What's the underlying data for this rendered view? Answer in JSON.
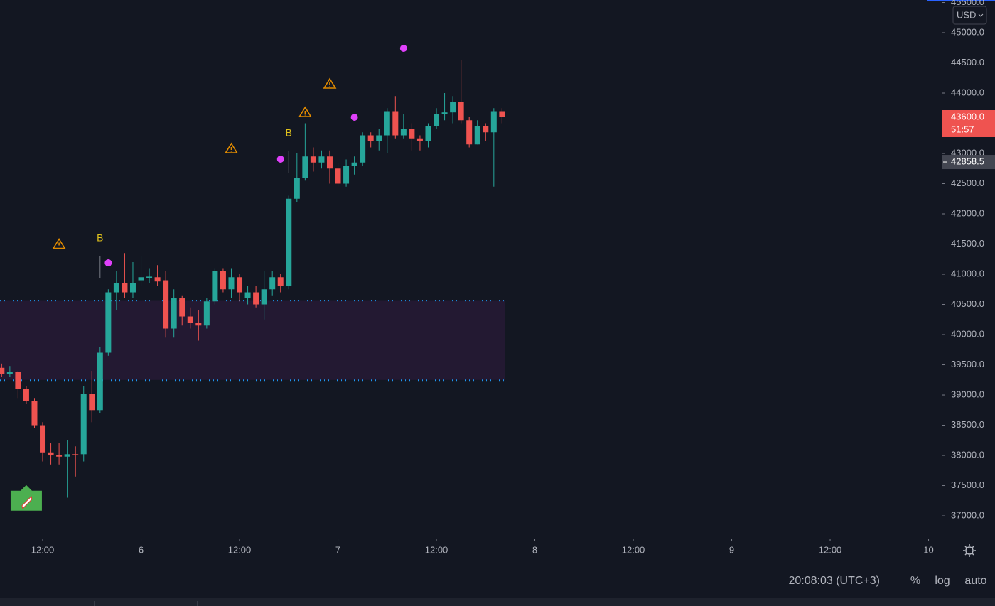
{
  "chart_data": {
    "type": "candlestick",
    "x": [
      7,
      8,
      9,
      10,
      11,
      12,
      13,
      14,
      15,
      16,
      17,
      18,
      19,
      20,
      21,
      22,
      23,
      24,
      25,
      26,
      27,
      28,
      29,
      30,
      31,
      32,
      33,
      34,
      35,
      36,
      37,
      38,
      39,
      40,
      41,
      42,
      43,
      44,
      45,
      46,
      47,
      48,
      49,
      50,
      51,
      52,
      53,
      54,
      55,
      56,
      57,
      58,
      59,
      60,
      61,
      62,
      63,
      64,
      65,
      66,
      67,
      68
    ],
    "open": [
      39450,
      39350,
      39380,
      39100,
      38900,
      38500,
      38050,
      38000,
      37980,
      38020,
      38020,
      39020,
      38750,
      39700,
      40700,
      40850,
      40700,
      40900,
      40930,
      40950,
      40900,
      40100,
      40600,
      40300,
      40200,
      40150,
      40550,
      41050,
      40750,
      40950,
      40600,
      40700,
      40500,
      40750,
      40950,
      40800,
      42250,
      42600,
      42950,
      42850,
      42950,
      42750,
      42500,
      42800,
      42850,
      43300,
      43200,
      43300,
      43700,
      43300,
      43400,
      43250,
      43200,
      43450,
      43650,
      43680,
      43850,
      43550,
      43150,
      43450,
      43350,
      43700
    ],
    "high": [
      39520,
      39480,
      39400,
      39150,
      38950,
      38550,
      38200,
      38200,
      38250,
      38150,
      39150,
      39400,
      39800,
      40750,
      41050,
      41350,
      41200,
      41300,
      41100,
      41150,
      41050,
      40750,
      40650,
      40450,
      40400,
      40600,
      41100,
      41100,
      41100,
      41000,
      40800,
      40800,
      41050,
      41050,
      41000,
      42300,
      43000,
      43500,
      43100,
      43050,
      43050,
      42850,
      42900,
      42950,
      43350,
      43350,
      43400,
      43750,
      43950,
      43650,
      43500,
      43300,
      43500,
      43750,
      44000,
      43950,
      44550,
      43600,
      43550,
      43500,
      43750,
      43750
    ],
    "low": [
      39300,
      39300,
      38950,
      38850,
      38450,
      37900,
      37850,
      37850,
      37300,
      37650,
      37900,
      38550,
      38700,
      39650,
      40400,
      40600,
      40600,
      40800,
      40850,
      40800,
      39950,
      39950,
      40150,
      40100,
      39900,
      40100,
      40500,
      40700,
      40600,
      40550,
      40500,
      40450,
      40250,
      40650,
      40700,
      40750,
      42200,
      42550,
      42700,
      42750,
      42500,
      42450,
      42450,
      42650,
      42800,
      43100,
      43050,
      43000,
      43250,
      43250,
      43050,
      43050,
      43100,
      43400,
      43550,
      43500,
      43500,
      43100,
      43150,
      43200,
      42450,
      43500
    ],
    "close": [
      39350,
      39380,
      39100,
      38900,
      38500,
      38050,
      38000,
      37980,
      38020,
      38010,
      39020,
      38750,
      39700,
      40700,
      40850,
      40700,
      40850,
      40950,
      40960,
      40880,
      40100,
      40600,
      40300,
      40200,
      40150,
      40550,
      41050,
      40750,
      40950,
      40700,
      40700,
      40500,
      40750,
      40950,
      40800,
      42250,
      42600,
      42950,
      42850,
      42950,
      42750,
      42500,
      42800,
      42850,
      43300,
      43200,
      43300,
      43700,
      43300,
      43400,
      43250,
      43200,
      43450,
      43650,
      43680,
      43850,
      43550,
      43150,
      43450,
      43350,
      43700,
      43600
    ],
    "up_color": "#26a69a",
    "down_color": "#ef5350",
    "xlim": [
      6.8,
      121.6
    ],
    "xticks": [
      {
        "value": 12,
        "label": "12:00"
      },
      {
        "value": 24,
        "label": "6"
      },
      {
        "value": 36,
        "label": "12:00"
      },
      {
        "value": 48,
        "label": "7"
      },
      {
        "value": 60,
        "label": "12:00"
      },
      {
        "value": 72,
        "label": "8"
      },
      {
        "value": 84,
        "label": "12:00"
      },
      {
        "value": 96,
        "label": "9"
      },
      {
        "value": 108,
        "label": "12:00"
      },
      {
        "value": 120,
        "label": "10"
      }
    ],
    "ylim": [
      36624,
      45541
    ],
    "yticks": [
      {
        "value": 37000,
        "label": "37000.0"
      },
      {
        "value": 37500,
        "label": "37500.0"
      },
      {
        "value": 38000,
        "label": "38000.0"
      },
      {
        "value": 38500,
        "label": "38500.0"
      },
      {
        "value": 39000,
        "label": "39000.0"
      },
      {
        "value": 39500,
        "label": "39500.0"
      },
      {
        "value": 40000,
        "label": "40000.0"
      },
      {
        "value": 40500,
        "label": "40500.0"
      },
      {
        "value": 41000,
        "label": "41000.0"
      },
      {
        "value": 41500,
        "label": "41500.0"
      },
      {
        "value": 42000,
        "label": "42000.0"
      },
      {
        "value": 42500,
        "label": "42500.0"
      },
      {
        "value": 43000,
        "label": "43000.0"
      },
      {
        "value": 43500,
        "label": "43500.0"
      },
      {
        "value": 44000,
        "label": "44000.0"
      },
      {
        "value": 44500,
        "label": "44500.0"
      },
      {
        "value": 45000,
        "label": "45000.0"
      },
      {
        "value": 45500,
        "label": "45500.0"
      }
    ],
    "zone": [
      39250,
      40570
    ],
    "zone_end": 68,
    "signals": [
      {
        "x": 19,
        "y": 41588,
        "label": "B"
      },
      {
        "x": 42,
        "y": 43329,
        "label": "B"
      }
    ],
    "warnings": [
      {
        "x": 14,
        "y": 41500
      },
      {
        "x": 35,
        "y": 43082
      },
      {
        "x": 44,
        "y": 43682
      },
      {
        "x": 47,
        "y": 44153
      }
    ],
    "dots": [
      {
        "x": 20,
        "y": 41188
      },
      {
        "x": 41,
        "y": 42906
      },
      {
        "x": 50,
        "y": 43600
      },
      {
        "x": 56,
        "y": 44741
      }
    ],
    "rocket": {
      "x": 10,
      "y": 37250
    },
    "last_price": {
      "value": 43600,
      "label": "43600.0"
    },
    "countdown": "51:57",
    "marker_price": {
      "value": 42858.5,
      "label": "42858.5"
    },
    "currency": "USD",
    "clock": "20:08:03 (UTC+3)",
    "buttons": [
      "%",
      "log",
      "auto"
    ]
  }
}
